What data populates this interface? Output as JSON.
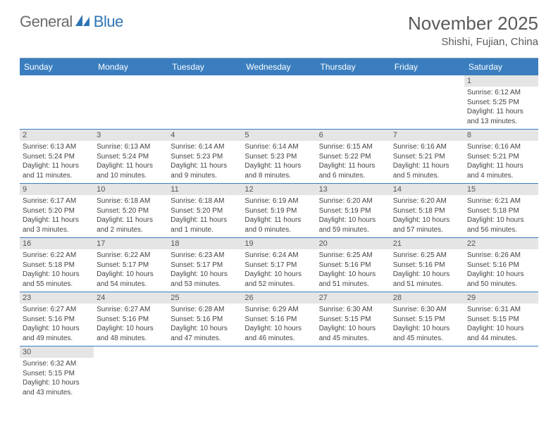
{
  "brand": {
    "name1": "General",
    "name2": "Blue"
  },
  "title": "November 2025",
  "location": "Shishi, Fujian, China",
  "colors": {
    "header_bg": "#3a7ebf",
    "header_text": "#ffffff",
    "daynum_bg": "#e5e5e5",
    "border": "#3a7ebf",
    "text": "#444444",
    "title_color": "#5a5a5a"
  },
  "day_labels": [
    "Sunday",
    "Monday",
    "Tuesday",
    "Wednesday",
    "Thursday",
    "Friday",
    "Saturday"
  ],
  "weeks": [
    [
      {
        "n": "",
        "sr": "",
        "ss": "",
        "dl": ""
      },
      {
        "n": "",
        "sr": "",
        "ss": "",
        "dl": ""
      },
      {
        "n": "",
        "sr": "",
        "ss": "",
        "dl": ""
      },
      {
        "n": "",
        "sr": "",
        "ss": "",
        "dl": ""
      },
      {
        "n": "",
        "sr": "",
        "ss": "",
        "dl": ""
      },
      {
        "n": "",
        "sr": "",
        "ss": "",
        "dl": ""
      },
      {
        "n": "1",
        "sr": "Sunrise: 6:12 AM",
        "ss": "Sunset: 5:25 PM",
        "dl": "Daylight: 11 hours and 13 minutes."
      }
    ],
    [
      {
        "n": "2",
        "sr": "Sunrise: 6:13 AM",
        "ss": "Sunset: 5:24 PM",
        "dl": "Daylight: 11 hours and 11 minutes."
      },
      {
        "n": "3",
        "sr": "Sunrise: 6:13 AM",
        "ss": "Sunset: 5:24 PM",
        "dl": "Daylight: 11 hours and 10 minutes."
      },
      {
        "n": "4",
        "sr": "Sunrise: 6:14 AM",
        "ss": "Sunset: 5:23 PM",
        "dl": "Daylight: 11 hours and 9 minutes."
      },
      {
        "n": "5",
        "sr": "Sunrise: 6:14 AM",
        "ss": "Sunset: 5:23 PM",
        "dl": "Daylight: 11 hours and 8 minutes."
      },
      {
        "n": "6",
        "sr": "Sunrise: 6:15 AM",
        "ss": "Sunset: 5:22 PM",
        "dl": "Daylight: 11 hours and 6 minutes."
      },
      {
        "n": "7",
        "sr": "Sunrise: 6:16 AM",
        "ss": "Sunset: 5:21 PM",
        "dl": "Daylight: 11 hours and 5 minutes."
      },
      {
        "n": "8",
        "sr": "Sunrise: 6:16 AM",
        "ss": "Sunset: 5:21 PM",
        "dl": "Daylight: 11 hours and 4 minutes."
      }
    ],
    [
      {
        "n": "9",
        "sr": "Sunrise: 6:17 AM",
        "ss": "Sunset: 5:20 PM",
        "dl": "Daylight: 11 hours and 3 minutes."
      },
      {
        "n": "10",
        "sr": "Sunrise: 6:18 AM",
        "ss": "Sunset: 5:20 PM",
        "dl": "Daylight: 11 hours and 2 minutes."
      },
      {
        "n": "11",
        "sr": "Sunrise: 6:18 AM",
        "ss": "Sunset: 5:20 PM",
        "dl": "Daylight: 11 hours and 1 minute."
      },
      {
        "n": "12",
        "sr": "Sunrise: 6:19 AM",
        "ss": "Sunset: 5:19 PM",
        "dl": "Daylight: 11 hours and 0 minutes."
      },
      {
        "n": "13",
        "sr": "Sunrise: 6:20 AM",
        "ss": "Sunset: 5:19 PM",
        "dl": "Daylight: 10 hours and 59 minutes."
      },
      {
        "n": "14",
        "sr": "Sunrise: 6:20 AM",
        "ss": "Sunset: 5:18 PM",
        "dl": "Daylight: 10 hours and 57 minutes."
      },
      {
        "n": "15",
        "sr": "Sunrise: 6:21 AM",
        "ss": "Sunset: 5:18 PM",
        "dl": "Daylight: 10 hours and 56 minutes."
      }
    ],
    [
      {
        "n": "16",
        "sr": "Sunrise: 6:22 AM",
        "ss": "Sunset: 5:18 PM",
        "dl": "Daylight: 10 hours and 55 minutes."
      },
      {
        "n": "17",
        "sr": "Sunrise: 6:22 AM",
        "ss": "Sunset: 5:17 PM",
        "dl": "Daylight: 10 hours and 54 minutes."
      },
      {
        "n": "18",
        "sr": "Sunrise: 6:23 AM",
        "ss": "Sunset: 5:17 PM",
        "dl": "Daylight: 10 hours and 53 minutes."
      },
      {
        "n": "19",
        "sr": "Sunrise: 6:24 AM",
        "ss": "Sunset: 5:17 PM",
        "dl": "Daylight: 10 hours and 52 minutes."
      },
      {
        "n": "20",
        "sr": "Sunrise: 6:25 AM",
        "ss": "Sunset: 5:16 PM",
        "dl": "Daylight: 10 hours and 51 minutes."
      },
      {
        "n": "21",
        "sr": "Sunrise: 6:25 AM",
        "ss": "Sunset: 5:16 PM",
        "dl": "Daylight: 10 hours and 51 minutes."
      },
      {
        "n": "22",
        "sr": "Sunrise: 6:26 AM",
        "ss": "Sunset: 5:16 PM",
        "dl": "Daylight: 10 hours and 50 minutes."
      }
    ],
    [
      {
        "n": "23",
        "sr": "Sunrise: 6:27 AM",
        "ss": "Sunset: 5:16 PM",
        "dl": "Daylight: 10 hours and 49 minutes."
      },
      {
        "n": "24",
        "sr": "Sunrise: 6:27 AM",
        "ss": "Sunset: 5:16 PM",
        "dl": "Daylight: 10 hours and 48 minutes."
      },
      {
        "n": "25",
        "sr": "Sunrise: 6:28 AM",
        "ss": "Sunset: 5:16 PM",
        "dl": "Daylight: 10 hours and 47 minutes."
      },
      {
        "n": "26",
        "sr": "Sunrise: 6:29 AM",
        "ss": "Sunset: 5:16 PM",
        "dl": "Daylight: 10 hours and 46 minutes."
      },
      {
        "n": "27",
        "sr": "Sunrise: 6:30 AM",
        "ss": "Sunset: 5:15 PM",
        "dl": "Daylight: 10 hours and 45 minutes."
      },
      {
        "n": "28",
        "sr": "Sunrise: 6:30 AM",
        "ss": "Sunset: 5:15 PM",
        "dl": "Daylight: 10 hours and 45 minutes."
      },
      {
        "n": "29",
        "sr": "Sunrise: 6:31 AM",
        "ss": "Sunset: 5:15 PM",
        "dl": "Daylight: 10 hours and 44 minutes."
      }
    ],
    [
      {
        "n": "30",
        "sr": "Sunrise: 6:32 AM",
        "ss": "Sunset: 5:15 PM",
        "dl": "Daylight: 10 hours and 43 minutes."
      },
      {
        "n": "",
        "sr": "",
        "ss": "",
        "dl": ""
      },
      {
        "n": "",
        "sr": "",
        "ss": "",
        "dl": ""
      },
      {
        "n": "",
        "sr": "",
        "ss": "",
        "dl": ""
      },
      {
        "n": "",
        "sr": "",
        "ss": "",
        "dl": ""
      },
      {
        "n": "",
        "sr": "",
        "ss": "",
        "dl": ""
      },
      {
        "n": "",
        "sr": "",
        "ss": "",
        "dl": ""
      }
    ]
  ]
}
